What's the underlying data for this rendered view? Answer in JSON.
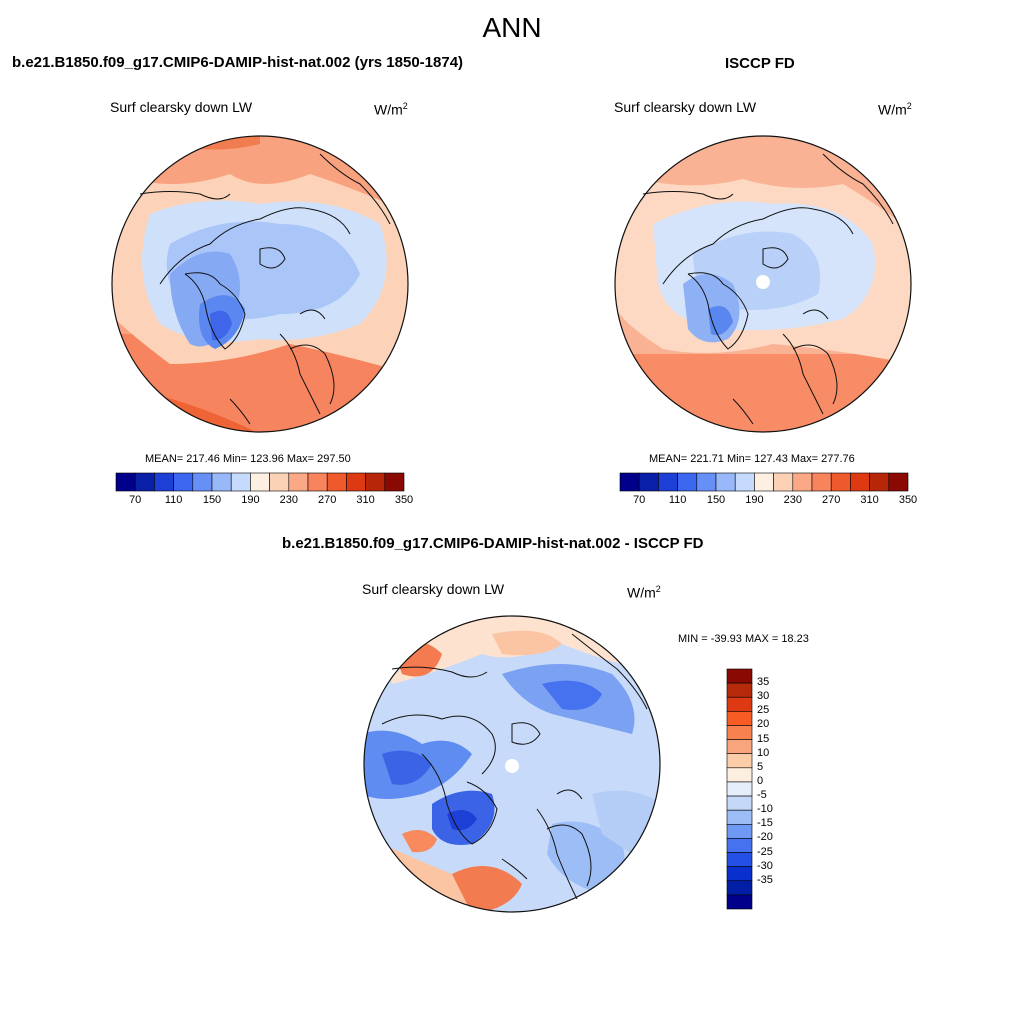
{
  "title": "ANN",
  "panels": [
    {
      "id": "model",
      "header": "b.e21.B1850.f09_g17.CMIP6-DAMIP-hist-nat.002 (yrs 1850-1874)",
      "variable": "Surf clearsky down LW",
      "units_base": "W/m",
      "units_exp": "2",
      "stats": "MEAN= 217.46  Min= 123.96  Max= 297.50",
      "mean": 217.46,
      "min": 123.96,
      "max": 297.5
    },
    {
      "id": "obs",
      "header": "ISCCP FD",
      "variable": "Surf clearsky down LW",
      "units_base": "W/m",
      "units_exp": "2",
      "stats": "MEAN= 221.71  Min= 127.43  Max= 277.76",
      "mean": 221.71,
      "min": 127.43,
      "max": 277.76
    },
    {
      "id": "diff",
      "header": "b.e21.B1850.f09_g17.CMIP6-DAMIP-hist-nat.002 - ISCCP FD",
      "variable": "Surf clearsky down LW",
      "units_base": "W/m",
      "units_exp": "2",
      "stats": "MIN = -39.93 MAX =  18.23",
      "min": -39.93,
      "max": 18.23
    }
  ],
  "colorbar_abs": {
    "colors": [
      "#00008b",
      "#0a1fa8",
      "#1d3fd6",
      "#3a66f0",
      "#6690f5",
      "#99b8fa",
      "#c6dafd",
      "#fdf0e2",
      "#fcd2b6",
      "#fba886",
      "#f7845d",
      "#ef5a2c",
      "#dd3a13",
      "#b82609",
      "#8a0a03"
    ],
    "tick_labels": [
      "70",
      "110",
      "150",
      "190",
      "230",
      "270",
      "310",
      "350"
    ]
  },
  "colorbar_diff": {
    "colors": [
      "#8a0a03",
      "#b52a0a",
      "#dd3a13",
      "#f65c24",
      "#f78250",
      "#f8a47c",
      "#fbcda9",
      "#fdefe0",
      "#e6eefb",
      "#c6d8f8",
      "#9cbdf5",
      "#6f98f2",
      "#4672ef",
      "#2450e6",
      "#0a2fcf",
      "#021ea4",
      "#00008b"
    ],
    "tick_labels": [
      "35",
      "30",
      "25",
      "20",
      "15",
      "10",
      "5",
      "0",
      "-5",
      "-10",
      "-15",
      "-20",
      "-25",
      "-30",
      "-35"
    ]
  },
  "chart_data": [
    {
      "type": "heatmap",
      "projection": "north polar stereographic",
      "title": "b.e21.B1850.f09_g17.CMIP6-DAMIP-hist-nat.002 (yrs 1850-1874)",
      "variable": "Surf clearsky down LW",
      "units": "W/m2",
      "colorbar_levels": [
        70,
        90,
        110,
        130,
        150,
        170,
        190,
        210,
        230,
        250,
        270,
        290,
        310,
        330,
        350
      ],
      "mean": 217.46,
      "min": 123.96,
      "max": 297.5
    },
    {
      "type": "heatmap",
      "projection": "north polar stereographic",
      "title": "ISCCP FD",
      "variable": "Surf clearsky down LW",
      "units": "W/m2",
      "colorbar_levels": [
        70,
        90,
        110,
        130,
        150,
        170,
        190,
        210,
        230,
        250,
        270,
        290,
        310,
        330,
        350
      ],
      "mean": 221.71,
      "min": 127.43,
      "max": 277.76
    },
    {
      "type": "heatmap",
      "projection": "north polar stereographic",
      "title": "b.e21.B1850.f09_g17.CMIP6-DAMIP-hist-nat.002 - ISCCP FD",
      "variable": "Surf clearsky down LW",
      "units": "W/m2",
      "colorbar_levels": [
        35,
        30,
        25,
        20,
        15,
        10,
        5,
        0,
        -5,
        -10,
        -15,
        -20,
        -25,
        -30,
        -35
      ],
      "min": -39.93,
      "max": 18.23
    }
  ]
}
